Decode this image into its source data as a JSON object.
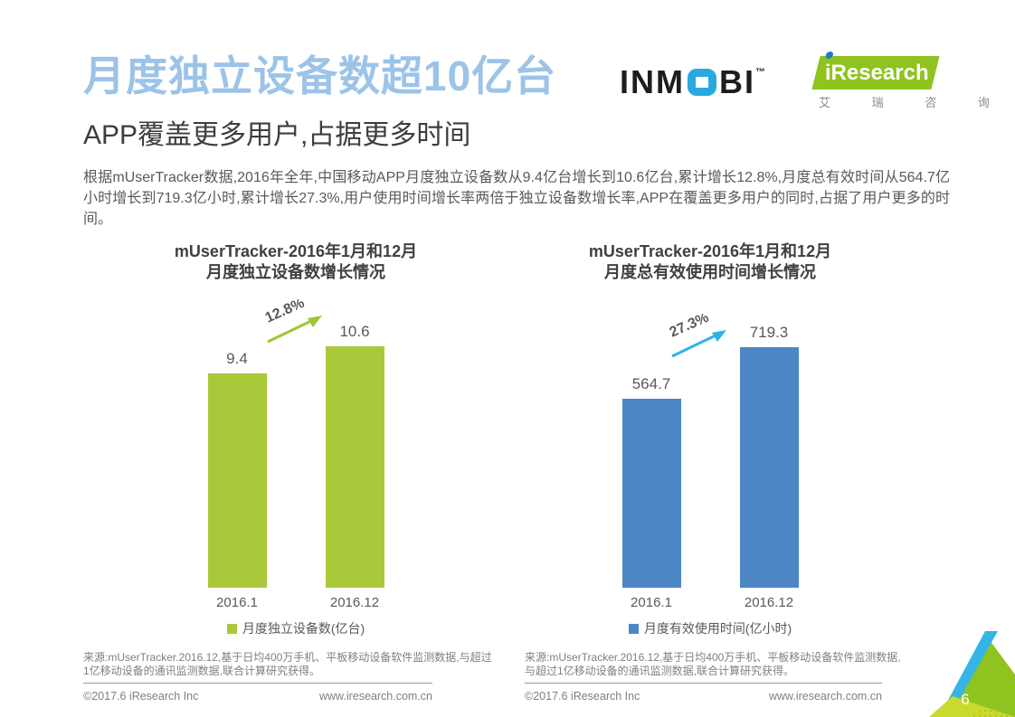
{
  "page": {
    "title": "月度独立设备数超10亿台",
    "subtitle": "APP覆盖更多用户,占据更多时间",
    "intro": "根据mUserTracker数据,2016年全年,中国移动APP月度独立设备数从9.4亿台增长到10.6亿台,累计增长12.8%,月度总有效时间从564.7亿小时增长到719.3亿小时,累计增长27.3%,用户使用时间增长率两倍于独立设备数增长率,APP在覆盖更多用户的同时,占据了用户更多的时间。",
    "page_number": "6"
  },
  "colors": {
    "title_blue": "#9cc3e8",
    "green_bar": "#a9c93a",
    "blue_bar": "#4c86c5",
    "green_arrow": "#9dc832",
    "cyan_arrow": "#2eb3e6",
    "iresearch_green": "#8fc31f"
  },
  "logos": {
    "inmobi": {
      "pre": "INM",
      "post": "BI",
      "tm": "™"
    },
    "iresearch": {
      "wordmark": "iResearch",
      "caption": "艾 瑞 咨 询"
    }
  },
  "chart_data": [
    {
      "type": "bar",
      "title_lines": [
        "mUserTracker-2016年1月和12月",
        "月度独立设备数增长情况"
      ],
      "categories": [
        "2016.1",
        "2016.12"
      ],
      "values": [
        9.4,
        10.6
      ],
      "value_labels": [
        "9.4",
        "10.6"
      ],
      "growth_label": "12.8%",
      "legend": "月度独立设备数(亿台)",
      "bar_color": "#a9c93a",
      "arrow_color": "#9dc832",
      "ylim": [
        0,
        11
      ],
      "grid": false,
      "legend_position": "bottom",
      "source": "来源:mUserTracker.2016.12,基于日均400万手机、平板移动设备软件监测数据,与超过1亿移动设备的通讯监测数据,联合计算研究获得。"
    },
    {
      "type": "bar",
      "title_lines": [
        "mUserTracker-2016年1月和12月",
        "月度总有效使用时间增长情况"
      ],
      "categories": [
        "2016.1",
        "2016.12"
      ],
      "values": [
        564.7,
        719.3
      ],
      "value_labels": [
        "564.7",
        "719.3"
      ],
      "growth_label": "27.3%",
      "legend": "月度有效使用时间(亿小时)",
      "bar_color": "#4c86c5",
      "arrow_color": "#2eb3e6",
      "ylim": [
        0,
        750
      ],
      "grid": false,
      "legend_position": "bottom",
      "source": "来源:mUserTracker.2016.12,基于日均400万手机、平板移动设备软件监测数据,与超过1亿移动设备的通讯监测数据,联合计算研究获得。"
    }
  ],
  "footer": {
    "copyright": "©2017.6 iResearch Inc",
    "website": "www.iresearch.com.cn"
  }
}
